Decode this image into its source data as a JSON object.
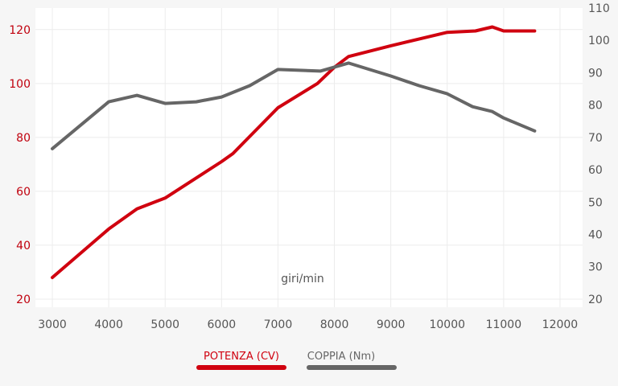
{
  "chart_data": {
    "type": "line",
    "xlabel": "giri/min",
    "x_ticks": [
      3000,
      4000,
      5000,
      6000,
      7000,
      8000,
      9000,
      10000,
      11000,
      12000
    ],
    "xlim": [
      2700,
      12400
    ],
    "y_left_ticks": [
      20,
      40,
      60,
      80,
      100,
      120
    ],
    "y_left_lim": [
      17,
      128
    ],
    "y_right_ticks": [
      20,
      30,
      40,
      50,
      60,
      70,
      80,
      90,
      100,
      110
    ],
    "y_right_lim": [
      17.5,
      110
    ],
    "grid": true,
    "legend_position": "bottom",
    "series": [
      {
        "name": "POTENZA (CV)",
        "axis": "left",
        "color": "#d0000f",
        "x": [
          3000,
          4000,
          4500,
          5000,
          6000,
          6200,
          7000,
          7700,
          8000,
          8250,
          9000,
          10000,
          10500,
          10800,
          11000,
          11550
        ],
        "y": [
          28,
          46,
          53.5,
          57.5,
          71,
          74,
          91,
          100,
          106,
          110,
          114,
          119,
          119.5,
          121,
          119.5,
          119.5
        ]
      },
      {
        "name": "COPPIA (Nm)",
        "axis": "right",
        "color": "#666666",
        "x": [
          3000,
          4000,
          4500,
          5000,
          5550,
          6000,
          6500,
          7000,
          7750,
          8250,
          9000,
          9500,
          10000,
          10450,
          10800,
          11000,
          11550
        ],
        "y": [
          66.5,
          81,
          83,
          80.5,
          81,
          82.5,
          86,
          91,
          90.5,
          93,
          89,
          86,
          83.5,
          79.5,
          78,
          76,
          72
        ]
      }
    ]
  }
}
